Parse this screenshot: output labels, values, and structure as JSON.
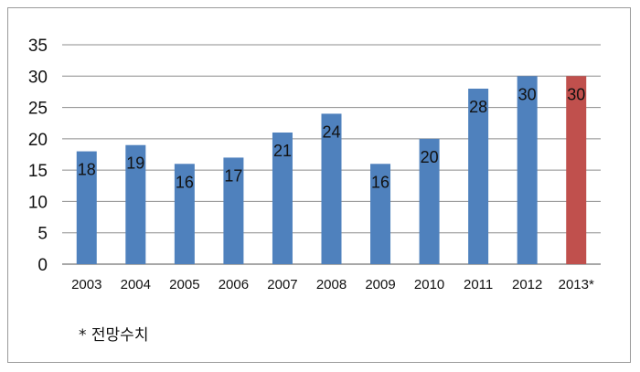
{
  "chart_data": {
    "type": "bar",
    "categories": [
      "2003",
      "2004",
      "2005",
      "2006",
      "2007",
      "2008",
      "2009",
      "2010",
      "2011",
      "2012",
      "2013*"
    ],
    "values": [
      18,
      19,
      16,
      17,
      21,
      24,
      16,
      20,
      28,
      30,
      30
    ],
    "data_labels": [
      "18",
      "19",
      "16",
      "17",
      "21",
      "24",
      "16",
      "20",
      "28",
      "30",
      "30"
    ],
    "y_ticks": [
      "0",
      "5",
      "10",
      "15",
      "20",
      "25",
      "30",
      "35"
    ],
    "ylim": [
      0,
      35
    ],
    "grid": true,
    "colors": {
      "bar": "#4f81bd",
      "projected_bar": "#c0504d",
      "grid": "#8c8c8c"
    },
    "projected_index": 10
  },
  "footnote": "* 전망수치"
}
